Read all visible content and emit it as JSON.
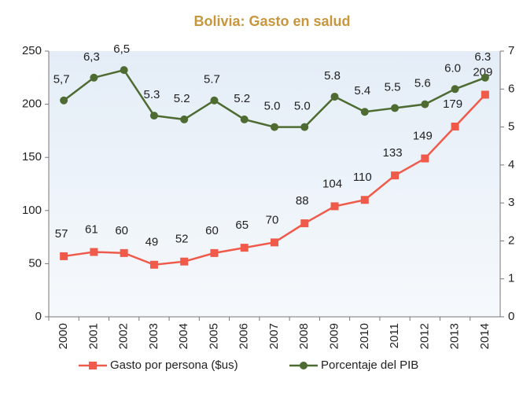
{
  "chart_data": {
    "type": "line",
    "title": "Bolivia: Gasto en salud",
    "categories": [
      "2000",
      "2001",
      "2002",
      "2003",
      "2004",
      "2005",
      "2006",
      "2007",
      "2008",
      "2009",
      "2010",
      "2011",
      "2012",
      "2013",
      "2014"
    ],
    "series": [
      {
        "name": "Gasto por persona ($us)",
        "color": "#f05a4a",
        "marker": "square",
        "axis": "y",
        "values": [
          57,
          61,
          60,
          49,
          52,
          60,
          65,
          70,
          88,
          104,
          110,
          133,
          149,
          179,
          209
        ]
      },
      {
        "name": "Porcentaje del PIB",
        "color": "#4e6b32",
        "marker": "circle",
        "axis": "y2",
        "values": [
          5.7,
          6.3,
          6.5,
          5.3,
          5.2,
          5.7,
          5.2,
          5.0,
          5.0,
          5.8,
          5.4,
          5.5,
          5.6,
          6.0,
          6.3
        ],
        "value_labels": [
          "5,7",
          "6,3",
          "6,5",
          "5.3",
          "5.2",
          "5.7",
          "5.2",
          "5.0",
          "5.0",
          "5.8",
          "5.4",
          "5.5",
          "5.6",
          "6.0",
          "6.3"
        ]
      }
    ],
    "ylim": [
      0,
      250
    ],
    "yticks": [
      0,
      50,
      100,
      150,
      200,
      250
    ],
    "y2lim": [
      0,
      7
    ],
    "y2ticks": [
      0,
      1,
      2,
      3,
      4,
      5,
      6,
      7
    ],
    "grid": false,
    "legend": "bottom"
  }
}
